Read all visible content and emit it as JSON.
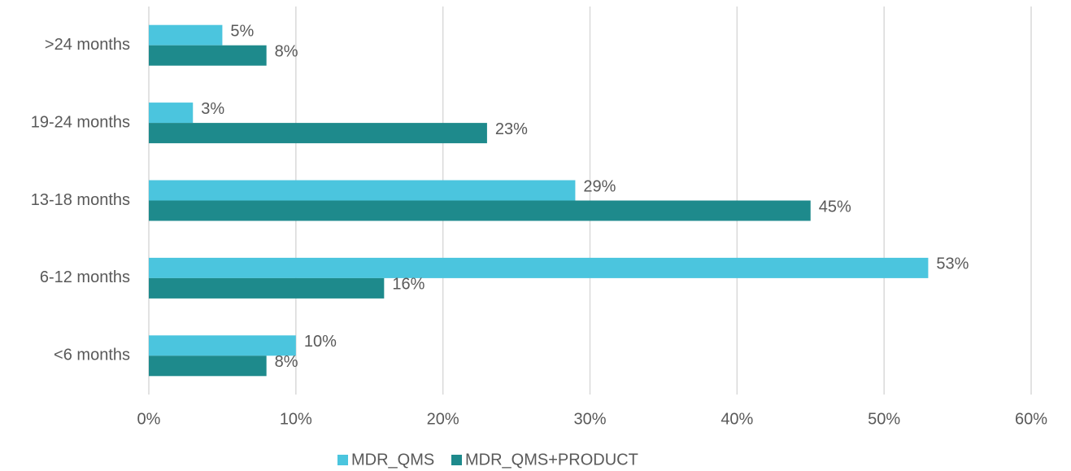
{
  "chart_data": {
    "type": "bar",
    "orientation": "horizontal",
    "categories": [
      ">24 months",
      "19-24 months",
      "13-18 months",
      "6-12 months",
      "<6 months"
    ],
    "series": [
      {
        "name": "MDR_QMS",
        "color": "#4bc5de",
        "values": [
          5,
          3,
          29,
          53,
          10
        ],
        "value_labels": [
          "5%",
          "3%",
          "29%",
          "53%",
          "10%"
        ]
      },
      {
        "name": "MDR_QMS+PRODUCT",
        "color": "#1e8a8c",
        "values": [
          8,
          23,
          45,
          16,
          8
        ],
        "value_labels": [
          "8%",
          "23%",
          "45%",
          "16%",
          "8%"
        ]
      }
    ],
    "xlim": [
      0,
      60
    ],
    "xticks": [
      {
        "value": 0,
        "label": "0%"
      },
      {
        "value": 10,
        "label": "10%"
      },
      {
        "value": 20,
        "label": "20%"
      },
      {
        "value": 30,
        "label": "30%"
      },
      {
        "value": 40,
        "label": "40%"
      },
      {
        "value": 50,
        "label": "50%"
      },
      {
        "value": 60,
        "label": "60%"
      }
    ],
    "grid": true,
    "legend": "bottom"
  }
}
